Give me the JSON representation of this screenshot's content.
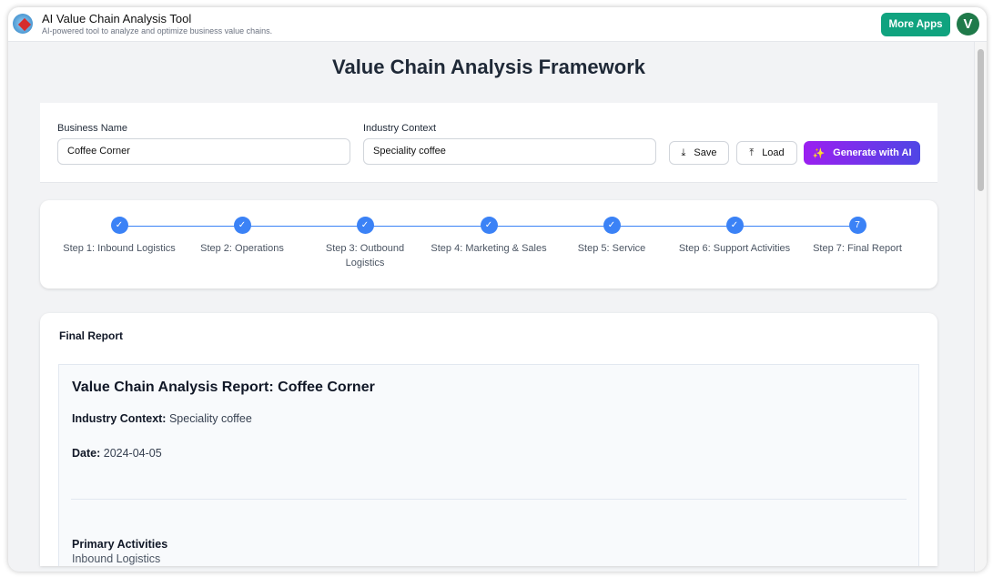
{
  "app": {
    "title": "AI Value Chain Analysis Tool",
    "subtitle": "AI-powered tool to analyze and optimize business value chains.",
    "more_apps": "More Apps",
    "avatar_letter": "V"
  },
  "page_title": "Value Chain Analysis Framework",
  "form": {
    "business_label": "Business Name",
    "business_value": "Coffee Corner",
    "industry_label": "Industry Context",
    "industry_value": "Speciality coffee",
    "save": "Save",
    "load": "Load",
    "generate": "Generate with AI"
  },
  "steps": [
    {
      "label": "Step 1: Inbound Logistics",
      "state": "done"
    },
    {
      "label": "Step 2: Operations",
      "state": "done"
    },
    {
      "label": "Step 3: Outbound Logistics",
      "state": "done"
    },
    {
      "label": "Step 4: Marketing & Sales",
      "state": "done"
    },
    {
      "label": "Step 5: Service",
      "state": "done"
    },
    {
      "label": "Step 6: Support Activities",
      "state": "done"
    },
    {
      "label": "Step 7: Final Report",
      "state": "current",
      "number": "7"
    }
  ],
  "report": {
    "card_title": "Final Report",
    "heading": "Value Chain Analysis Report: Coffee Corner",
    "industry_label": "Industry Context:",
    "industry_value": "Speciality coffee",
    "date_label": "Date:",
    "date_value": "2024-04-05",
    "section": "Primary Activities",
    "subsection": "Inbound Logistics"
  },
  "colors": {
    "accent": "#3b82f6",
    "more_apps": "#10a37f",
    "generate_from": "#9b1ff0",
    "generate_to": "#4f46e5"
  }
}
